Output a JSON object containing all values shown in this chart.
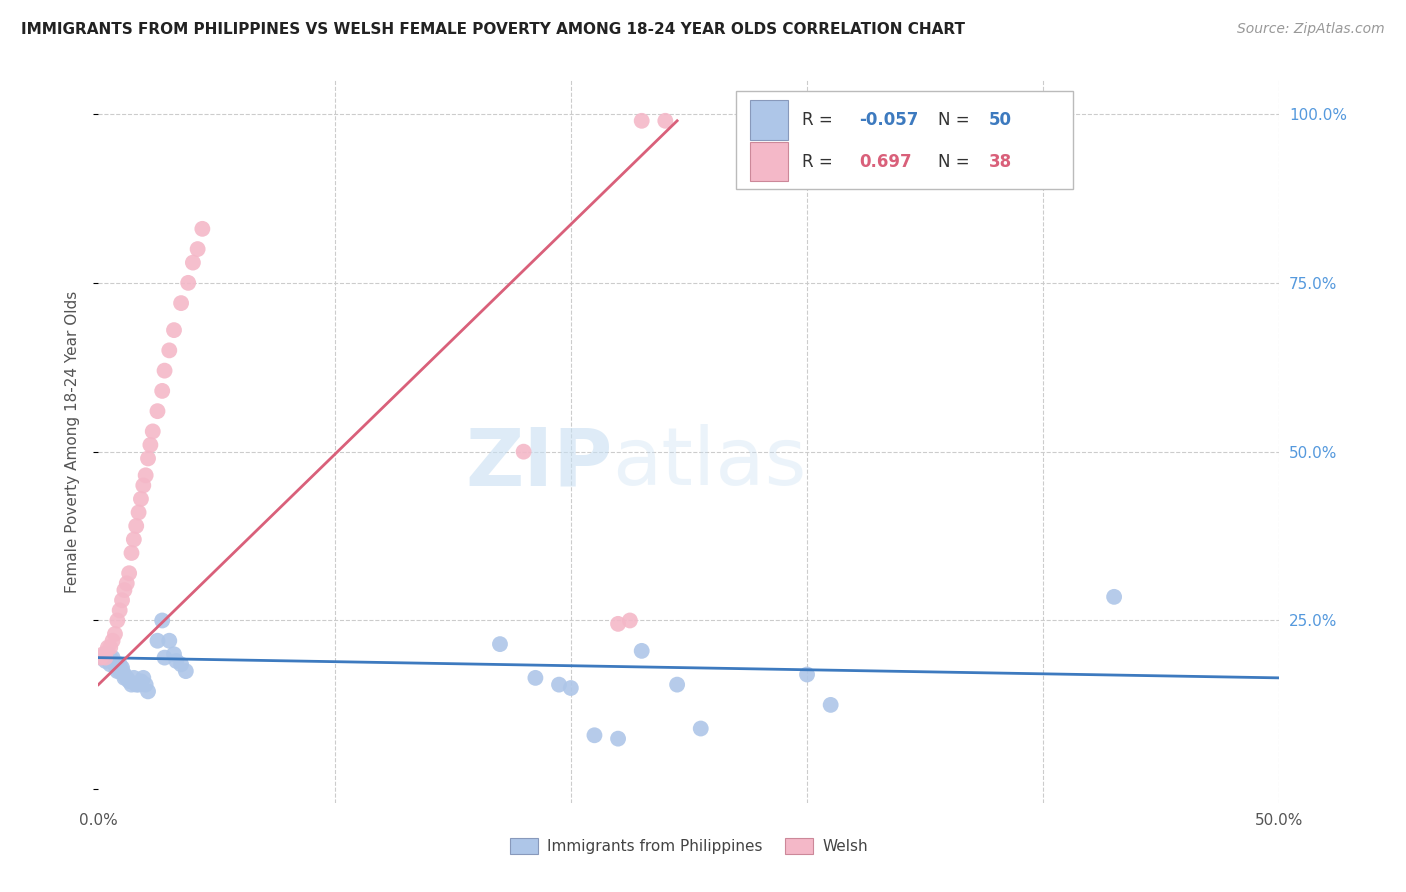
{
  "title": "IMMIGRANTS FROM PHILIPPINES VS WELSH FEMALE POVERTY AMONG 18-24 YEAR OLDS CORRELATION CHART",
  "source": "Source: ZipAtlas.com",
  "ylabel": "Female Poverty Among 18-24 Year Olds",
  "xlim": [
    0.0,
    0.5
  ],
  "ylim": [
    -0.02,
    1.05
  ],
  "legend_r_blue": "-0.057",
  "legend_n_blue": "50",
  "legend_r_pink": "0.697",
  "legend_n_pink": "38",
  "blue_color": "#aec6e8",
  "pink_color": "#f4b8c8",
  "blue_line_color": "#3d7abf",
  "pink_line_color": "#d9607a",
  "watermark_zip": "ZIP",
  "watermark_atlas": "atlas",
  "blue_scatter_x": [
    0.001,
    0.002,
    0.003,
    0.003,
    0.004,
    0.004,
    0.005,
    0.005,
    0.006,
    0.006,
    0.007,
    0.007,
    0.008,
    0.008,
    0.009,
    0.009,
    0.01,
    0.01,
    0.011,
    0.011,
    0.012,
    0.013,
    0.014,
    0.015,
    0.016,
    0.017,
    0.018,
    0.019,
    0.02,
    0.021,
    0.025,
    0.027,
    0.028,
    0.03,
    0.032,
    0.033,
    0.035,
    0.037,
    0.17,
    0.185,
    0.195,
    0.2,
    0.21,
    0.22,
    0.23,
    0.245,
    0.255,
    0.3,
    0.31,
    0.43
  ],
  "blue_scatter_y": [
    0.195,
    0.195,
    0.19,
    0.2,
    0.2,
    0.195,
    0.195,
    0.185,
    0.19,
    0.195,
    0.185,
    0.185,
    0.18,
    0.175,
    0.175,
    0.185,
    0.18,
    0.175,
    0.17,
    0.165,
    0.165,
    0.16,
    0.155,
    0.165,
    0.155,
    0.155,
    0.16,
    0.165,
    0.155,
    0.145,
    0.22,
    0.25,
    0.195,
    0.22,
    0.2,
    0.19,
    0.185,
    0.175,
    0.215,
    0.165,
    0.155,
    0.15,
    0.08,
    0.075,
    0.205,
    0.155,
    0.09,
    0.17,
    0.125,
    0.285
  ],
  "pink_scatter_x": [
    0.001,
    0.002,
    0.003,
    0.004,
    0.005,
    0.006,
    0.007,
    0.008,
    0.009,
    0.01,
    0.011,
    0.012,
    0.013,
    0.014,
    0.015,
    0.016,
    0.017,
    0.018,
    0.019,
    0.02,
    0.021,
    0.022,
    0.023,
    0.025,
    0.027,
    0.028,
    0.03,
    0.032,
    0.035,
    0.038,
    0.04,
    0.042,
    0.044,
    0.18,
    0.22,
    0.225,
    0.23,
    0.24
  ],
  "pink_scatter_y": [
    0.195,
    0.2,
    0.195,
    0.21,
    0.21,
    0.22,
    0.23,
    0.25,
    0.265,
    0.28,
    0.295,
    0.305,
    0.32,
    0.35,
    0.37,
    0.39,
    0.41,
    0.43,
    0.45,
    0.465,
    0.49,
    0.51,
    0.53,
    0.56,
    0.59,
    0.62,
    0.65,
    0.68,
    0.72,
    0.75,
    0.78,
    0.8,
    0.83,
    0.5,
    0.245,
    0.25,
    0.99,
    0.99
  ],
  "blue_trend_x": [
    0.0,
    0.5
  ],
  "blue_trend_y": [
    0.195,
    0.165
  ],
  "pink_trend_x": [
    0.0,
    0.245
  ],
  "pink_trend_y": [
    0.155,
    0.99
  ]
}
